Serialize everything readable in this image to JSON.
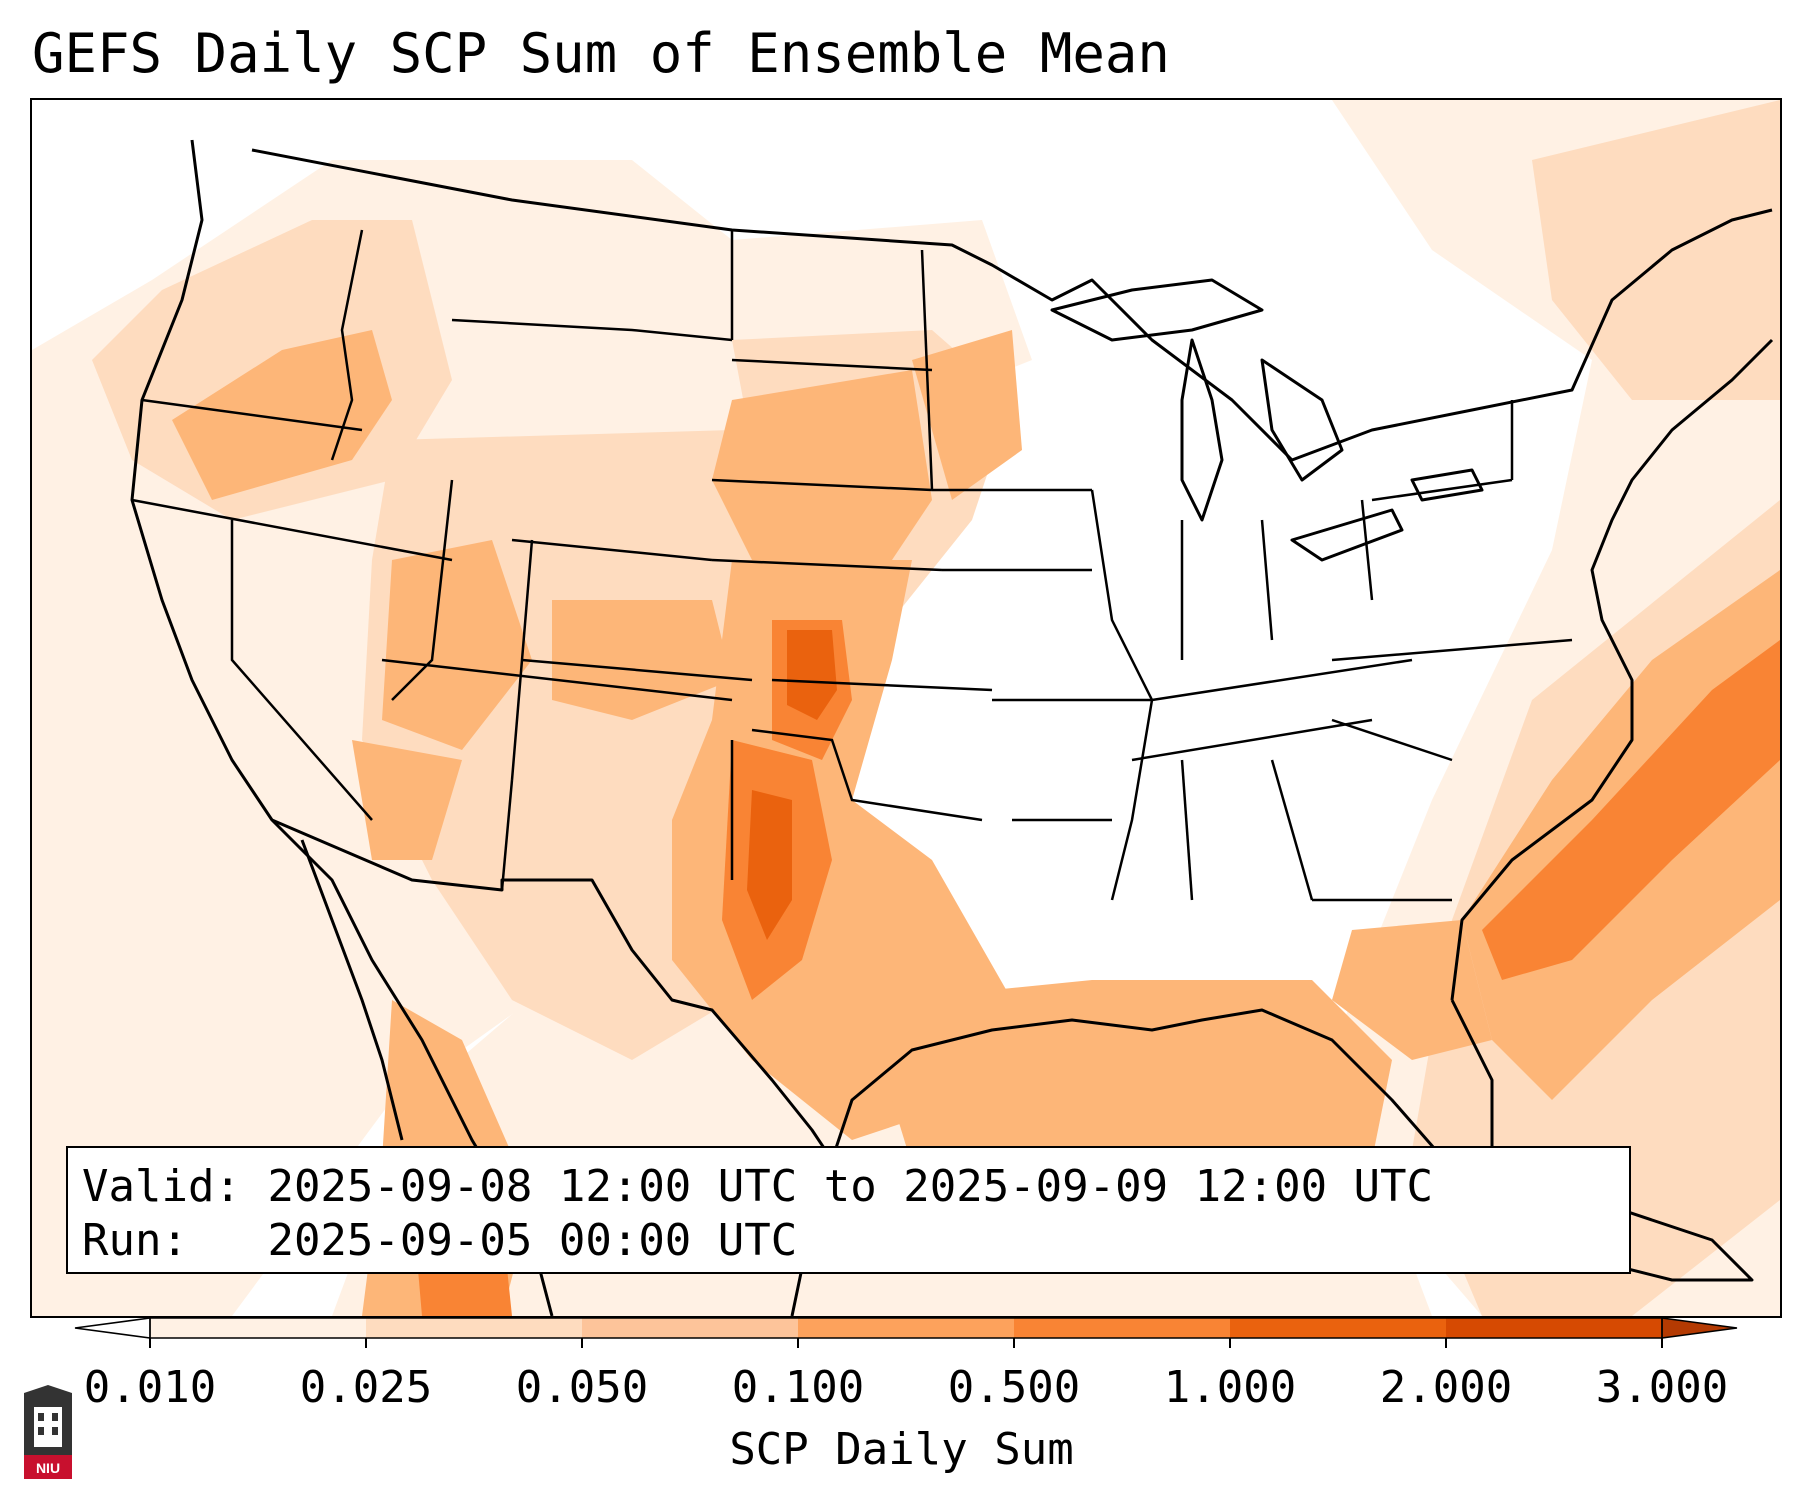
{
  "title": "GEFS Daily SCP Sum of Ensemble Mean",
  "info": {
    "valid_label": "Valid:",
    "valid_value": "2025-09-08 12:00 UTC to 2025-09-09 12:00 UTC",
    "run_label": "Run:",
    "run_value": "2025-09-05 00:00 UTC"
  },
  "colorbar": {
    "label": "SCP Daily Sum",
    "ticks": [
      "0.010",
      "0.025",
      "0.050",
      "0.100",
      "0.500",
      "1.000",
      "2.000",
      "3.000"
    ],
    "colors": [
      "#fff1e4",
      "#fedcbf",
      "#fdc49a",
      "#fda25c",
      "#f98434",
      "#ea620e",
      "#d64a02"
    ],
    "extend": "both"
  },
  "logo": {
    "text": "NIU"
  },
  "colors": {
    "level1": "#fff1e4",
    "level2": "#fedcbf",
    "level3": "#fdb678",
    "level4": "#f98434",
    "level5": "#ea620e"
  }
}
